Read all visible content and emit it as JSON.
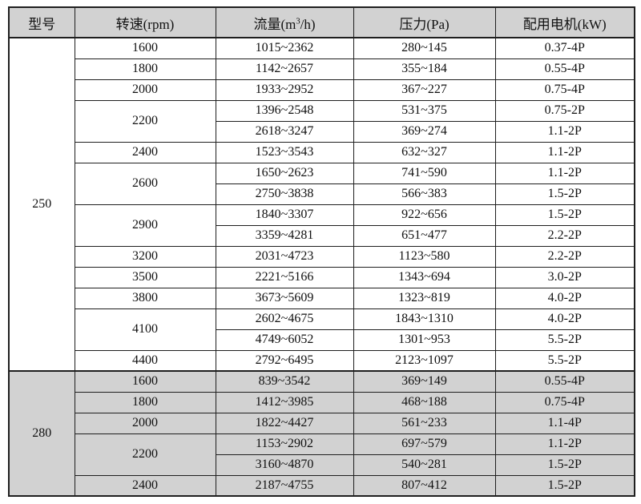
{
  "colors": {
    "border": "#1f1f1f",
    "header_bg": "#d2d2d2",
    "shaded_bg": "#d2d2d2"
  },
  "table": {
    "headers": {
      "model": "型号",
      "speed": "转速(rpm)",
      "flow_pre": "流量(m",
      "flow_sup": "3",
      "flow_post": "/h)",
      "pressure": "压力(Pa)",
      "motor": "配用电机(kW)"
    },
    "groups": [
      {
        "model": "250",
        "shaded": false,
        "rows": [
          {
            "speed": "1600",
            "flow": "1015~2362",
            "pressure": "280~145",
            "motor": "0.37-4P"
          },
          {
            "speed": "1800",
            "flow": "1142~2657",
            "pressure": "355~184",
            "motor": "0.55-4P"
          },
          {
            "speed": "2000",
            "flow": "1933~2952",
            "pressure": "367~227",
            "motor": "0.75-4P"
          },
          {
            "speed": "2200",
            "speed_span": 2,
            "flow": "1396~2548",
            "pressure": "531~375",
            "motor": "0.75-2P"
          },
          {
            "flow": "2618~3247",
            "pressure": "369~274",
            "motor": "1.1-2P"
          },
          {
            "speed": "2400",
            "flow": "1523~3543",
            "pressure": "632~327",
            "motor": "1.1-2P"
          },
          {
            "speed": "2600",
            "speed_span": 2,
            "flow": "1650~2623",
            "pressure": "741~590",
            "motor": "1.1-2P"
          },
          {
            "flow": "2750~3838",
            "pressure": "566~383",
            "motor": "1.5-2P"
          },
          {
            "speed": "2900",
            "speed_span": 2,
            "flow": "1840~3307",
            "pressure": "922~656",
            "motor": "1.5-2P"
          },
          {
            "flow": "3359~4281",
            "pressure": "651~477",
            "motor": "2.2-2P"
          },
          {
            "speed": "3200",
            "flow": "2031~4723",
            "pressure": "1123~580",
            "motor": "2.2-2P"
          },
          {
            "speed": "3500",
            "flow": "2221~5166",
            "pressure": "1343~694",
            "motor": "3.0-2P"
          },
          {
            "speed": "3800",
            "flow": "3673~5609",
            "pressure": "1323~819",
            "motor": "4.0-2P"
          },
          {
            "speed": "4100",
            "speed_span": 2,
            "flow": "2602~4675",
            "pressure": "1843~1310",
            "motor": "4.0-2P"
          },
          {
            "flow": "4749~6052",
            "pressure": "1301~953",
            "motor": "5.5-2P"
          },
          {
            "speed": "4400",
            "flow": "2792~6495",
            "pressure": "2123~1097",
            "motor": "5.5-2P"
          }
        ]
      },
      {
        "model": "280",
        "shaded": true,
        "rows": [
          {
            "speed": "1600",
            "flow": "839~3542",
            "pressure": "369~149",
            "motor": "0.55-4P"
          },
          {
            "speed": "1800",
            "flow": "1412~3985",
            "pressure": "468~188",
            "motor": "0.75-4P"
          },
          {
            "speed": "2000",
            "flow": "1822~4427",
            "pressure": "561~233",
            "motor": "1.1-4P"
          },
          {
            "speed": "2200",
            "speed_span": 2,
            "flow": "1153~2902",
            "pressure": "697~579",
            "motor": "1.1-2P"
          },
          {
            "flow": "3160~4870",
            "pressure": "540~281",
            "motor": "1.5-2P"
          },
          {
            "speed": "2400",
            "flow": "2187~4755",
            "pressure": "807~412",
            "motor": "1.5-2P"
          }
        ]
      }
    ]
  }
}
